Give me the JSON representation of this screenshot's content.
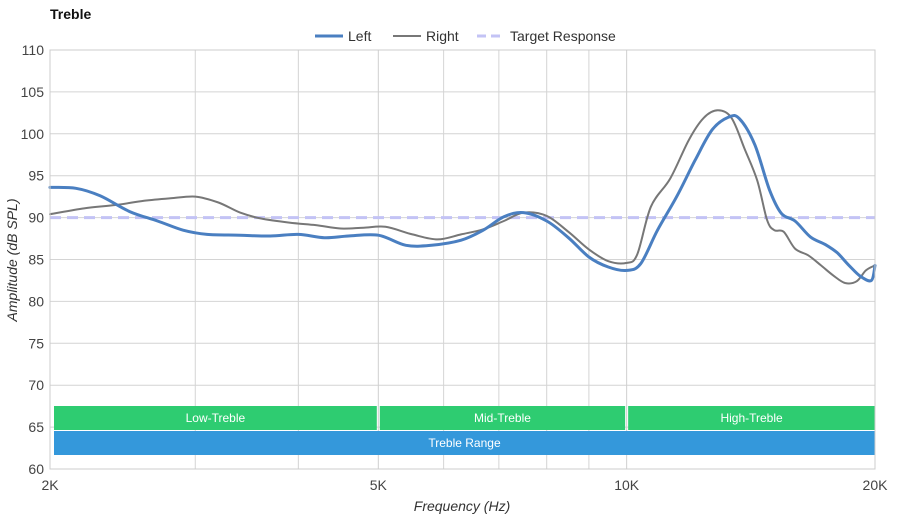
{
  "chart_data": {
    "type": "line",
    "title": "Treble",
    "xlabel": "Frequency (Hz)",
    "ylabel": "Amplitude (dB SPL)",
    "xscale": "log",
    "xlim": [
      2000,
      20000
    ],
    "ylim": [
      60,
      110
    ],
    "x_ticks": [
      {
        "value": 2000,
        "label": "2K"
      },
      {
        "value": 5000,
        "label": "5K"
      },
      {
        "value": 10000,
        "label": "10K"
      },
      {
        "value": 20000,
        "label": "20K"
      }
    ],
    "x_minor_gridlines": [
      3000,
      4000,
      6000,
      7000,
      8000,
      9000
    ],
    "y_ticks": [
      60,
      65,
      70,
      75,
      80,
      85,
      90,
      95,
      100,
      105,
      110
    ],
    "legend": [
      {
        "name": "Left",
        "color": "#4a7fc1",
        "style": "solid"
      },
      {
        "name": "Right",
        "color": "#777777",
        "style": "solid"
      },
      {
        "name": "Target Response",
        "color": "#c3c3f5",
        "style": "dashed"
      }
    ],
    "series": [
      {
        "name": "Left",
        "color": "#4a7fc1",
        "points": [
          [
            2000,
            93.6
          ],
          [
            2150,
            93.5
          ],
          [
            2300,
            92.6
          ],
          [
            2500,
            90.7
          ],
          [
            2700,
            89.6
          ],
          [
            2900,
            88.5
          ],
          [
            3100,
            88.0
          ],
          [
            3400,
            87.9
          ],
          [
            3700,
            87.8
          ],
          [
            4000,
            88.0
          ],
          [
            4300,
            87.6
          ],
          [
            4600,
            87.8
          ],
          [
            5000,
            87.9
          ],
          [
            5400,
            86.7
          ],
          [
            5800,
            86.7
          ],
          [
            6300,
            87.3
          ],
          [
            6700,
            88.5
          ],
          [
            7100,
            90.1
          ],
          [
            7500,
            90.6
          ],
          [
            8000,
            89.6
          ],
          [
            8500,
            87.6
          ],
          [
            9000,
            85.3
          ],
          [
            9500,
            84.1
          ],
          [
            10000,
            83.7
          ],
          [
            10400,
            84.5
          ],
          [
            10900,
            88.5
          ],
          [
            11500,
            92.5
          ],
          [
            12100,
            96.8
          ],
          [
            12700,
            100.5
          ],
          [
            13300,
            102.0
          ],
          [
            13700,
            101.8
          ],
          [
            14300,
            98.7
          ],
          [
            14900,
            93.3
          ],
          [
            15400,
            90.5
          ],
          [
            16000,
            89.6
          ],
          [
            16700,
            87.7
          ],
          [
            17400,
            86.8
          ],
          [
            18000,
            85.8
          ],
          [
            18600,
            84.3
          ],
          [
            19200,
            83.0
          ],
          [
            19800,
            82.5
          ],
          [
            20000,
            84.3
          ]
        ]
      },
      {
        "name": "Right",
        "color": "#777777",
        "points": [
          [
            2000,
            90.4
          ],
          [
            2200,
            91.1
          ],
          [
            2400,
            91.5
          ],
          [
            2600,
            92.0
          ],
          [
            2800,
            92.3
          ],
          [
            3000,
            92.5
          ],
          [
            3200,
            91.8
          ],
          [
            3400,
            90.6
          ],
          [
            3600,
            89.9
          ],
          [
            3900,
            89.4
          ],
          [
            4200,
            89.1
          ],
          [
            4500,
            88.7
          ],
          [
            4800,
            88.8
          ],
          [
            5100,
            88.9
          ],
          [
            5500,
            88.0
          ],
          [
            5900,
            87.4
          ],
          [
            6300,
            88.0
          ],
          [
            6700,
            88.6
          ],
          [
            7100,
            89.6
          ],
          [
            7500,
            90.6
          ],
          [
            8000,
            90.2
          ],
          [
            8500,
            88.3
          ],
          [
            9000,
            86.2
          ],
          [
            9500,
            84.8
          ],
          [
            10000,
            84.6
          ],
          [
            10300,
            85.6
          ],
          [
            10700,
            91.3
          ],
          [
            11300,
            94.7
          ],
          [
            11900,
            99.3
          ],
          [
            12400,
            101.9
          ],
          [
            12900,
            102.8
          ],
          [
            13400,
            101.9
          ],
          [
            13900,
            98.2
          ],
          [
            14400,
            94.4
          ],
          [
            14800,
            89.7
          ],
          [
            15100,
            88.5
          ],
          [
            15500,
            88.3
          ],
          [
            16000,
            86.3
          ],
          [
            16600,
            85.5
          ],
          [
            17200,
            84.3
          ],
          [
            17800,
            83.1
          ],
          [
            18400,
            82.2
          ],
          [
            19000,
            82.4
          ],
          [
            19500,
            83.7
          ],
          [
            20000,
            84.3
          ]
        ]
      },
      {
        "name": "Target Response",
        "color": "#c3c3f5",
        "dashed": true,
        "points": [
          [
            2000,
            90
          ],
          [
            20000,
            90
          ]
        ]
      }
    ],
    "bands": [
      {
        "label": "Low-Treble",
        "from": 2000,
        "to": 5000,
        "color": "#2ecc71",
        "row": 1
      },
      {
        "label": "Mid-Treble",
        "from": 5000,
        "to": 10000,
        "color": "#2ecc71",
        "row": 1
      },
      {
        "label": "High-Treble",
        "from": 10000,
        "to": 20000,
        "color": "#2ecc71",
        "row": 1
      },
      {
        "label": "Treble Range",
        "from": 2000,
        "to": 20000,
        "color": "#3498db",
        "row": 2
      }
    ]
  }
}
